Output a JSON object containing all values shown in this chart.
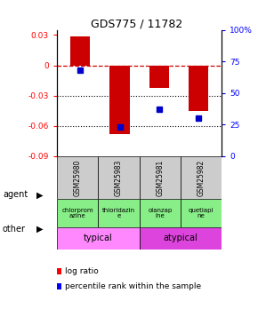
{
  "title": "GDS775 / 11782",
  "samples": [
    "GSM25980",
    "GSM25983",
    "GSM25981",
    "GSM25982"
  ],
  "log_ratios": [
    0.029,
    -0.068,
    -0.022,
    -0.045
  ],
  "percentile_ranks": [
    68,
    23,
    37,
    30
  ],
  "agent_labels": [
    "chlorprom\nazine",
    "thioridazin\ne",
    "olanzap\nine",
    "quetiapi\nne"
  ],
  "ylim": [
    -0.09,
    0.035
  ],
  "yticks_left": [
    -0.09,
    -0.06,
    -0.03,
    0.0,
    0.03
  ],
  "ytick_labels_left": [
    "-0.09",
    "-0.06",
    "-0.03",
    "0",
    "0.03"
  ],
  "right_yticks": [
    0,
    25,
    50,
    75,
    100
  ],
  "right_ylim": [
    0,
    100
  ],
  "bar_color": "#cc0000",
  "dot_color": "#0000cc",
  "background_color": "#ffffff",
  "typical_color": "#ff88ff",
  "atypical_color": "#dd44dd",
  "agent_bg_color": "#88ee88",
  "sample_bg_color": "#cccccc",
  "bar_width": 0.5
}
